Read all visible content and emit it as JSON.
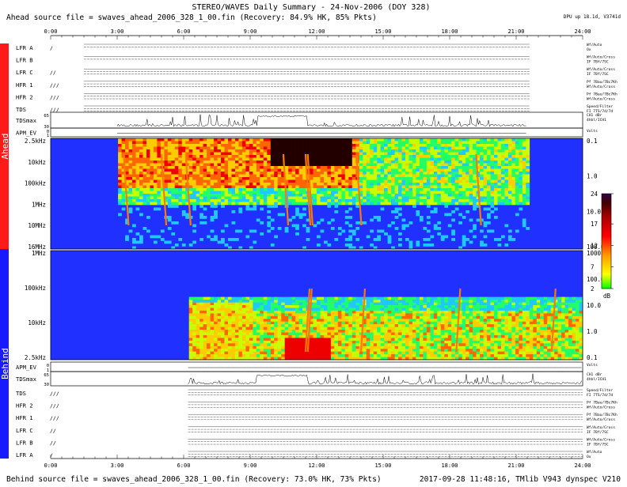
{
  "title": "STEREO/WAVES Daily Summary - 24-Nov-2006 (DOY 328)",
  "ahead_source": "Ahead source file = swaves_ahead_2006_328_1_00.fin (Recovery: 84.9% HK,  85% Pkts)",
  "behind_source": "Behind source file = swaves_ahead_2006_328_1_00.fin (Recovery: 73.0% HK,  73% Pkts)",
  "dpu_info": "DPU up 18.1d, V3741d",
  "footer_stamp": "2017-09-28 11:48:16, TMlib V943 dynspec V210",
  "time_ticks": [
    "0:00",
    "3:00",
    "6:00",
    "9:00",
    "12:00",
    "15:00",
    "18:00",
    "21:00",
    "24:00"
  ],
  "side_labels": {
    "ahead": "Ahead",
    "behind": "Behind"
  },
  "colors": {
    "ahead_bar": "#ff1a1a",
    "behind_bar": "#1a1aff",
    "background": "#2030ff"
  },
  "ahead_rows": [
    {
      "label": "LFR A",
      "left": "/",
      "right": [
        "Wf/Auto",
        "Ox"
      ]
    },
    {
      "label": "LFR B",
      "left": "",
      "right": [
        "Wf/Auto/Cross",
        "IF 7Bf/7SC"
      ]
    },
    {
      "label": "LFR C",
      "left": "//",
      "right": [
        "Wf/Auto/Cross",
        "IF 7Bf/7SC"
      ]
    },
    {
      "label": "HFR 1",
      "left": "///",
      "right": [
        "Pf 7Bau/7Bc7Kh",
        "Wf/Auto/Cross"
      ]
    },
    {
      "label": "HFR 2",
      "left": "///",
      "right": [
        "Pf 7Bau/7Bc7Kh",
        "Wf/Auto/Cross"
      ]
    },
    {
      "label": "TDS",
      "left": "///",
      "right": [
        "Speed/Filter",
        "FI 7TS/7d/7d"
      ]
    }
  ],
  "behind_rows": [
    {
      "label": "TDS",
      "left": "///",
      "right": [
        "Speed/Filter",
        "FI 7TS/7d/7d"
      ]
    },
    {
      "label": "HFR 2",
      "left": "///",
      "right": [
        "Pf 7Bau/7Bc7Kh",
        "Wf/Auto/Cross"
      ]
    },
    {
      "label": "HFR 1",
      "left": "///",
      "right": [
        "Pf 7Bau/7Bc7Kh",
        "Wf/Auto/Cross"
      ]
    },
    {
      "label": "LFR C",
      "left": "//",
      "right": [
        "Wf/Auto/Cross",
        "IF 7Bf/7SC"
      ]
    },
    {
      "label": "LFR B",
      "left": "//",
      "right": [
        "Wf/Auto/Cross",
        "IF 7Bf/7SC"
      ]
    },
    {
      "label": "LFR A",
      "left": "/",
      "right": [
        "Wf/Auto",
        "Ox"
      ]
    }
  ],
  "ahead_tdsmax": {
    "label": "TDSmax",
    "y_ticks": [
      "65",
      "30"
    ],
    "right": [
      "CH1 dBr",
      "4hbl/ICH1"
    ]
  },
  "ahead_apm": {
    "label": "APM_EV",
    "y_ticks": [
      "0",
      "1"
    ],
    "right": [
      "Volts"
    ]
  },
  "behind_apm": {
    "label": "APM_EV",
    "y_ticks": [
      "0",
      "1"
    ],
    "right": [
      "Volts"
    ]
  },
  "behind_tdsmax": {
    "label": "TDSmax",
    "y_ticks": [
      "65",
      "30"
    ],
    "right": [
      "CH1 dBr",
      "4hbl/ICH1"
    ]
  },
  "chart_data": [
    {
      "type": "heatmap",
      "name": "ahead-dynamic-spectrum",
      "x_unit": "hours UT",
      "xlim": [
        0,
        24
      ],
      "freq_ticks_left": [
        "2.5kHz",
        "10kHz",
        "100kHz",
        "1MHz",
        "10MHz",
        "16MHz"
      ],
      "freq_ticks_right": [
        "0.1",
        "1.0",
        "10.0",
        "100.0"
      ],
      "data_start_hour": 3.0,
      "data_end_hour": 21.5,
      "bursts_hour": [
        3.3,
        5.0,
        6.1,
        10.5,
        11.5,
        11.6,
        13.8,
        19.2
      ]
    },
    {
      "type": "heatmap",
      "name": "behind-dynamic-spectrum",
      "x_unit": "hours UT",
      "xlim": [
        0,
        24
      ],
      "freq_ticks_left": [
        "1MHz",
        "100kHz",
        "10kHz",
        "2.5kHz"
      ],
      "freq_ticks_right": [
        "1000.0",
        "100.0",
        "10.0",
        "1.0",
        "0.1"
      ],
      "data_start_hour": 6.2,
      "data_end_hour": 24,
      "bursts_hour": [
        11.5,
        11.6,
        14.0,
        18.3,
        22.6
      ]
    }
  ],
  "colorbar": {
    "ticks": [
      "24",
      "17",
      "12",
      "7",
      "2"
    ],
    "unit": "dB",
    "range": [
      2,
      24
    ],
    "stops": [
      "#00ff00",
      "#ffff00",
      "#ff9900",
      "#ff0000",
      "#cc0000",
      "#550000",
      "#330044"
    ]
  }
}
